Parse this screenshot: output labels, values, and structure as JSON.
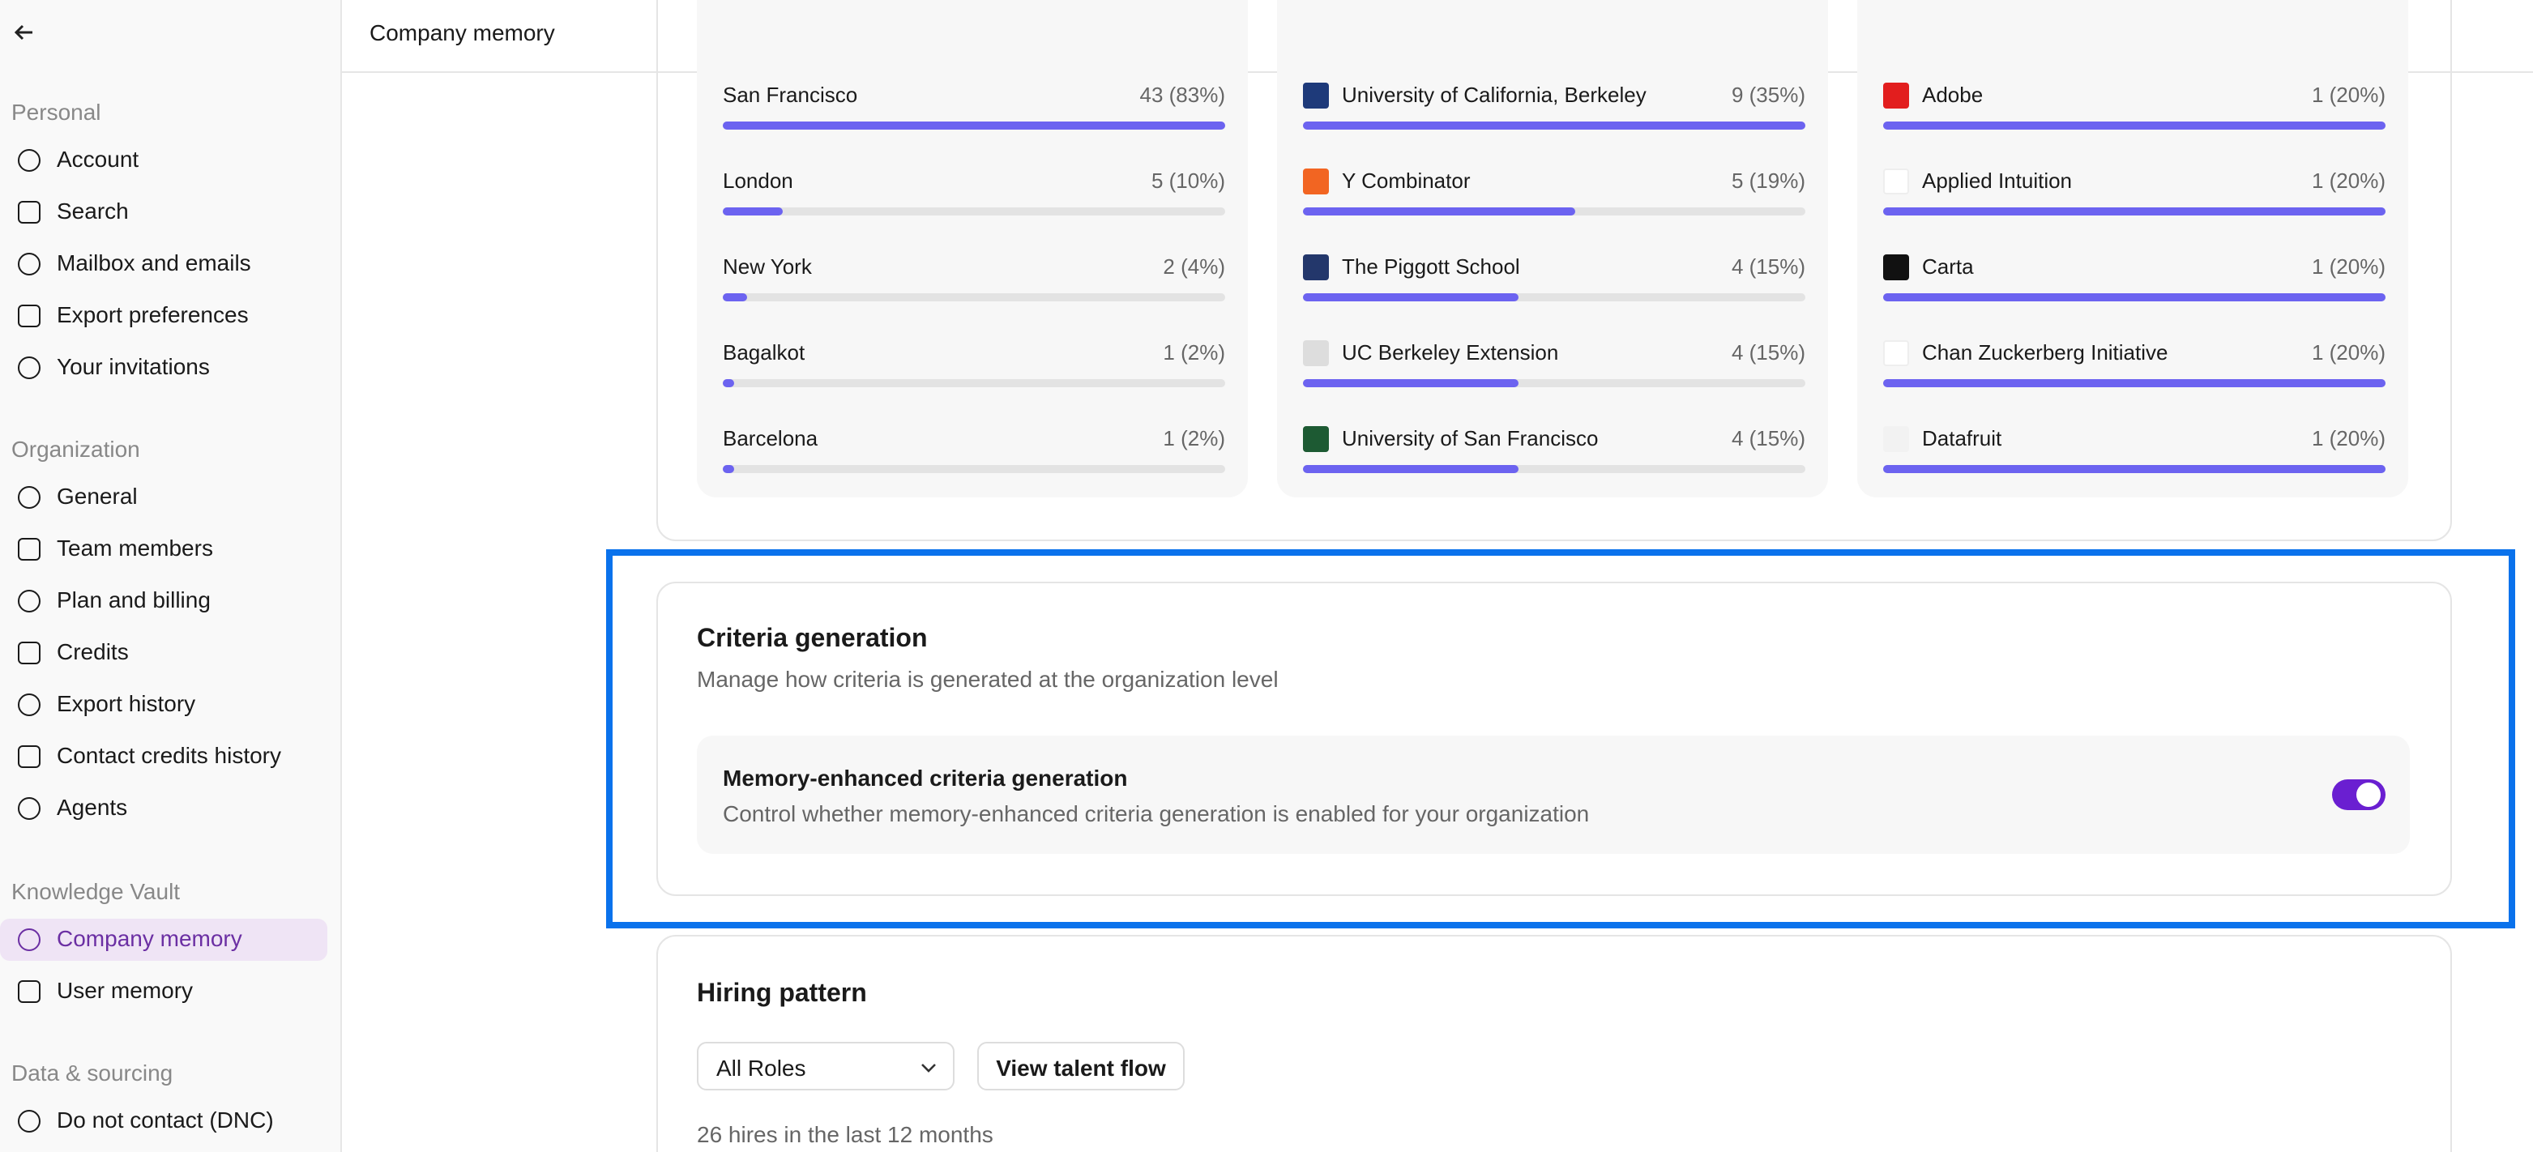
{
  "header": {
    "title": "Company memory"
  },
  "sidebar": {
    "sections": [
      {
        "title": "Personal",
        "items": [
          "Account",
          "Search",
          "Mailbox and emails",
          "Export preferences",
          "Your invitations"
        ]
      },
      {
        "title": "Organization",
        "items": [
          "General",
          "Team members",
          "Plan and billing",
          "Credits",
          "Export history",
          "Contact credits history",
          "Agents"
        ]
      },
      {
        "title": "Knowledge Vault",
        "items": [
          "Company memory",
          "User memory"
        ]
      },
      {
        "title": "Data & sourcing",
        "items": [
          "Do not contact (DNC)"
        ]
      }
    ]
  },
  "stats": [
    {
      "categories": [
        "San Francisco",
        "London",
        "New York",
        "Bagalkot",
        "Barcelona"
      ],
      "values": [
        83,
        10,
        4,
        2,
        2
      ],
      "value_labels": [
        "43 (83%)",
        "5 (10%)",
        "2 (4%)",
        "1 (2%)",
        "1 (2%)"
      ]
    },
    {
      "categories": [
        "University of California, Berkeley",
        "Y Combinator",
        "The Piggott School",
        "UC Berkeley Extension",
        "University of San Francisco"
      ],
      "values": [
        35,
        19,
        15,
        15,
        15
      ],
      "value_labels": [
        "9 (35%)",
        "5 (19%)",
        "4 (15%)",
        "4 (15%)",
        "4 (15%)"
      ]
    },
    {
      "categories": [
        "Adobe",
        "Applied Intuition",
        "Carta",
        "Chan Zuckerberg Initiative",
        "Datafruit"
      ],
      "values": [
        20,
        20,
        20,
        20,
        20
      ],
      "value_labels": [
        "1 (20%)",
        "1 (20%)",
        "1 (20%)",
        "1 (20%)",
        "1 (20%)"
      ]
    }
  ],
  "criteria": {
    "title": "Criteria generation",
    "subtitle": "Manage how criteria is generated at the organization level",
    "setting": {
      "title": "Memory-enhanced criteria generation",
      "description": "Control whether memory-enhanced criteria generation is enabled for your organization",
      "enabled": true
    }
  },
  "hiring": {
    "title": "Hiring pattern",
    "role_filter": "All Roles",
    "button": "View talent flow",
    "summary": "26 hires in the last 12 months"
  }
}
